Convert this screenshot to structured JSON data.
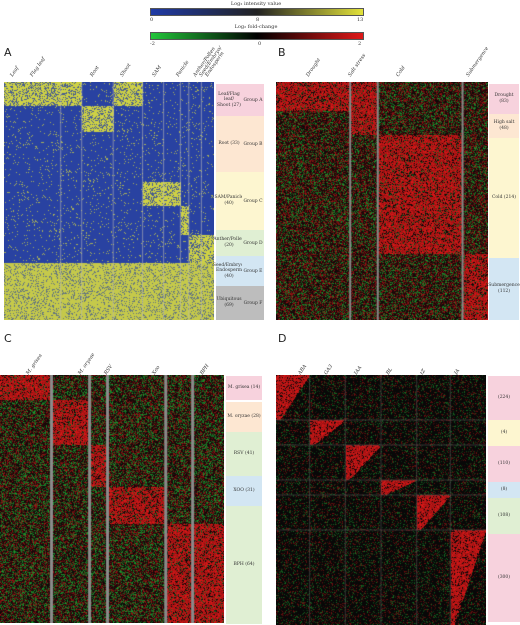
{
  "legend": {
    "intensity": {
      "title": "Log₂ intensity value",
      "ticks": [
        "0",
        "8",
        "13"
      ]
    },
    "fold": {
      "title": "Log₂ fold-change",
      "ticks": [
        "-2",
        "0",
        "2"
      ]
    }
  },
  "panels": {
    "A": {
      "letter": "A",
      "columns": [
        "Leaf",
        "Flag leaf",
        "Root",
        "Shoot",
        "SAM",
        "Panicle",
        "Anther/Pollen",
        "Seed/Embryo/",
        "Endosperm"
      ],
      "tissues": [
        {
          "label": "Leaf/Flag leaf/ Shoot (27)",
          "group": "Group A"
        },
        {
          "label": "Root (33)",
          "group": "Group B"
        },
        {
          "label": "SAM/Panicle (40)",
          "group": "Group C"
        },
        {
          "label": "Anther/Pollen (20)",
          "group": "Group D"
        },
        {
          "label": "Seed/Embryo/ Endosperm (40)",
          "group": "Group E"
        },
        {
          "label": "Ubiquitous (69)",
          "group": "Group F"
        }
      ]
    },
    "B": {
      "letter": "B",
      "columns": [
        "Drought",
        "Salt stress",
        "Cold",
        "Submergence"
      ],
      "groups": [
        "Drought (83)",
        "High salt (48)",
        "Cold (214)",
        "Submergence (112)"
      ]
    },
    "C": {
      "letter": "C",
      "columns": [
        "M. grisea",
        "M. oryzae",
        "RSV",
        "Xoo",
        "BPH"
      ],
      "groups": [
        "M. grisea (14)",
        "M. oryzae (28)",
        "RSV (41)",
        "XOO (31)",
        "BPH (64)"
      ]
    },
    "D": {
      "letter": "D",
      "columns": [
        "ABA",
        "GA3",
        "IAA",
        "BL",
        "tZ",
        "JA"
      ],
      "groups": [
        "(224)",
        "(4)",
        "(110)",
        "(8)",
        "(108)",
        "(300)"
      ]
    }
  },
  "colors": {
    "blue": "#1f3aa6",
    "yellow": "#e2e23a",
    "red": "#e01818",
    "green": "#22c63a",
    "black": "#080808"
  }
}
